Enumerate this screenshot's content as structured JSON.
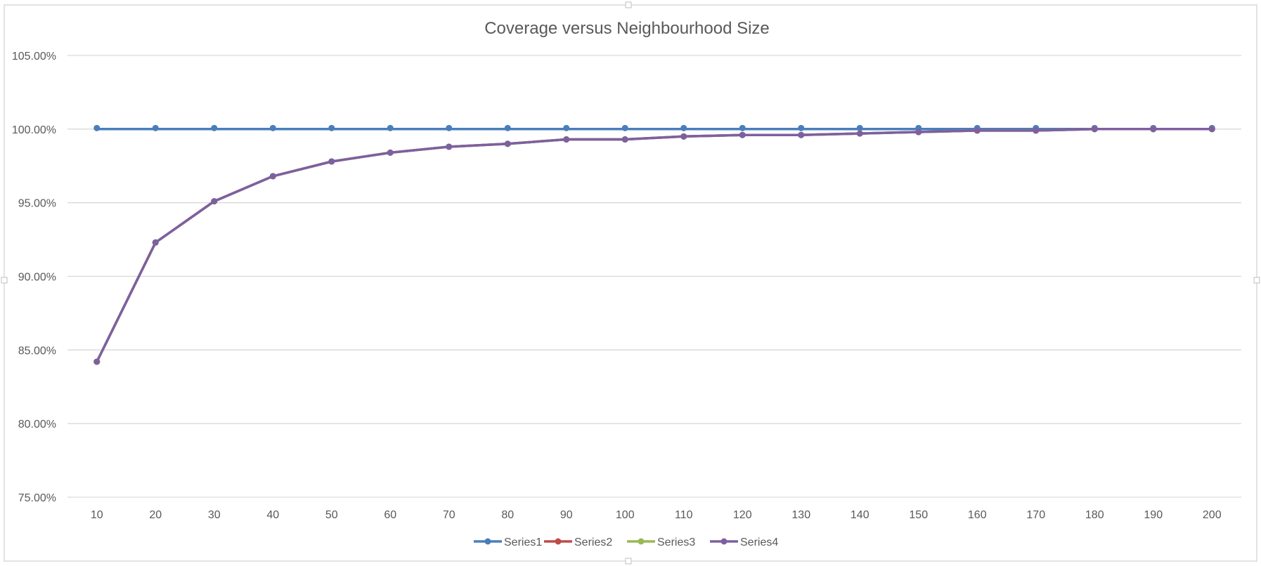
{
  "chart_data": {
    "type": "line",
    "title": "Coverage versus Neighbourhood Size",
    "xlabel": "",
    "ylabel": "",
    "categories": [
      10,
      20,
      30,
      40,
      50,
      60,
      70,
      80,
      90,
      100,
      110,
      120,
      130,
      140,
      150,
      160,
      170,
      180,
      190,
      200
    ],
    "ylim": [
      0.75,
      1.05
    ],
    "yticks": [
      0.75,
      0.8,
      0.85,
      0.9,
      0.95,
      1.0,
      1.05
    ],
    "ytick_labels": [
      "75.00%",
      "80.00%",
      "85.00%",
      "90.00%",
      "95.00%",
      "100.00%",
      "105.00%"
    ],
    "grid": true,
    "legend_position": "bottom",
    "markers": true,
    "series": [
      {
        "name": "Series1",
        "color": "#4a7ebb",
        "values": [
          1.0,
          1.0,
          1.0,
          1.0,
          1.0,
          1.0,
          1.0,
          1.0,
          1.0,
          1.0,
          1.0,
          1.0,
          1.0,
          1.0,
          1.0,
          1.0,
          1.0,
          1.0,
          1.0,
          1.0
        ]
      },
      {
        "name": "Series2",
        "color": "#be4b48",
        "values": [
          0.842,
          0.923,
          0.951,
          0.968,
          0.978,
          0.984,
          0.988,
          0.99,
          0.993,
          0.993,
          0.995,
          0.996,
          0.996,
          0.997,
          0.998,
          0.999,
          0.999,
          1.0,
          1.0,
          1.0
        ]
      },
      {
        "name": "Series3",
        "color": "#98b954",
        "values": [
          0.842,
          0.923,
          0.951,
          0.968,
          0.978,
          0.984,
          0.988,
          0.99,
          0.993,
          0.993,
          0.995,
          0.996,
          0.996,
          0.997,
          0.998,
          0.999,
          0.999,
          1.0,
          1.0,
          1.0
        ]
      },
      {
        "name": "Series4",
        "color": "#7d60a0",
        "values": [
          0.842,
          0.923,
          0.951,
          0.968,
          0.978,
          0.984,
          0.988,
          0.99,
          0.993,
          0.993,
          0.995,
          0.996,
          0.996,
          0.997,
          0.998,
          0.999,
          0.999,
          1.0,
          1.0,
          1.0
        ]
      }
    ]
  }
}
